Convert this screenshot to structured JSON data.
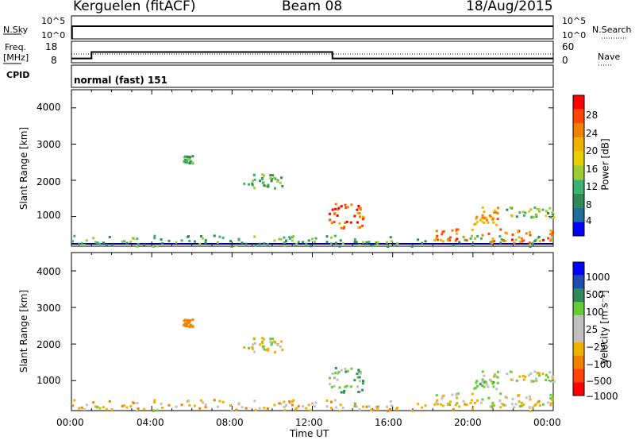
{
  "header": {
    "station": "Kerguelen (fitACF)",
    "beam": "Beam 08",
    "date": "18/Aug/2015"
  },
  "top_panel": {
    "nsky_label": "N.Sky",
    "nsearch_label": "N.Search",
    "left_ticks": [
      "10^5",
      "10^0"
    ],
    "right_ticks": [
      "10^5",
      "10^0"
    ]
  },
  "freq_panel": {
    "freq_label": "Freq.",
    "freq_unit": "[MHz]",
    "cpid_label": "CPID",
    "nave_label": "Nave",
    "left_ticks": [
      "18",
      "8"
    ],
    "right_ticks": [
      "60",
      "0"
    ],
    "mode_text": "normal (fast) 151"
  },
  "axes": {
    "ylabel": "Slant Range [km]",
    "xlabel": "Time UT",
    "y_ticks": [
      "4000",
      "3000",
      "2000",
      "1000"
    ],
    "x_ticks": [
      "00:00",
      "04:00",
      "08:00",
      "12:00",
      "16:00",
      "20:00",
      "00:00"
    ]
  },
  "power_colorbar": {
    "label": "Power [dB]",
    "ticks": [
      "28",
      "24",
      "20",
      "16",
      "12",
      "8",
      "4"
    ],
    "colors": [
      "#ff0000",
      "#ff4500",
      "#f08000",
      "#f0b000",
      "#e8d000",
      "#9acd32",
      "#3cb371",
      "#2e8b57",
      "#1e6e9a",
      "#0000ff"
    ]
  },
  "velocity_colorbar": {
    "label": "Velocity [m s⁻¹]",
    "ticks": [
      "1000",
      "500",
      "100",
      "25",
      "−25",
      "−100",
      "−500",
      "−1000"
    ],
    "colors": [
      "#0000ff",
      "#1e4fb0",
      "#2e8b57",
      "#66cc33",
      "#c0c0c0",
      "#c0c0c0",
      "#f0b000",
      "#f08000",
      "#ff4500",
      "#ff0000"
    ]
  },
  "chart_data": {
    "type": "heatmap",
    "x_range": [
      "00:00",
      "24:00"
    ],
    "y_range_km": [
      180,
      4500
    ],
    "freq_segments_mhz": [
      {
        "from": "00:00",
        "to": "01:00",
        "value": 10
      },
      {
        "from": "01:00",
        "to": "13:00",
        "value": 13
      },
      {
        "from": "13:00",
        "to": "24:00",
        "value": 10
      }
    ],
    "scatter_regions": [
      {
        "t_start": 0.0,
        "t_end": 24.0,
        "r_start": 200,
        "r_end": 500,
        "power_db": 10,
        "velocity": -50
      },
      {
        "t_start": 5.5,
        "t_end": 6.0,
        "r_start": 2500,
        "r_end": 2700,
        "power_db": 10,
        "velocity": -300
      },
      {
        "t_start": 8.5,
        "t_end": 10.5,
        "r_start": 1800,
        "r_end": 2200,
        "power_db": 10,
        "velocity": 0
      },
      {
        "t_start": 12.8,
        "t_end": 14.5,
        "r_start": 700,
        "r_end": 1400,
        "power_db": 26,
        "velocity": 60
      },
      {
        "t_start": 18.0,
        "t_end": 24.0,
        "r_start": 300,
        "r_end": 700,
        "power_db": 24,
        "velocity": 0
      },
      {
        "t_start": 20.0,
        "t_end": 21.2,
        "r_start": 800,
        "r_end": 1300,
        "power_db": 22,
        "velocity": 50
      },
      {
        "t_start": 21.5,
        "t_end": 24.0,
        "r_start": 1000,
        "r_end": 1300,
        "power_db": 12,
        "velocity": 0
      }
    ]
  }
}
